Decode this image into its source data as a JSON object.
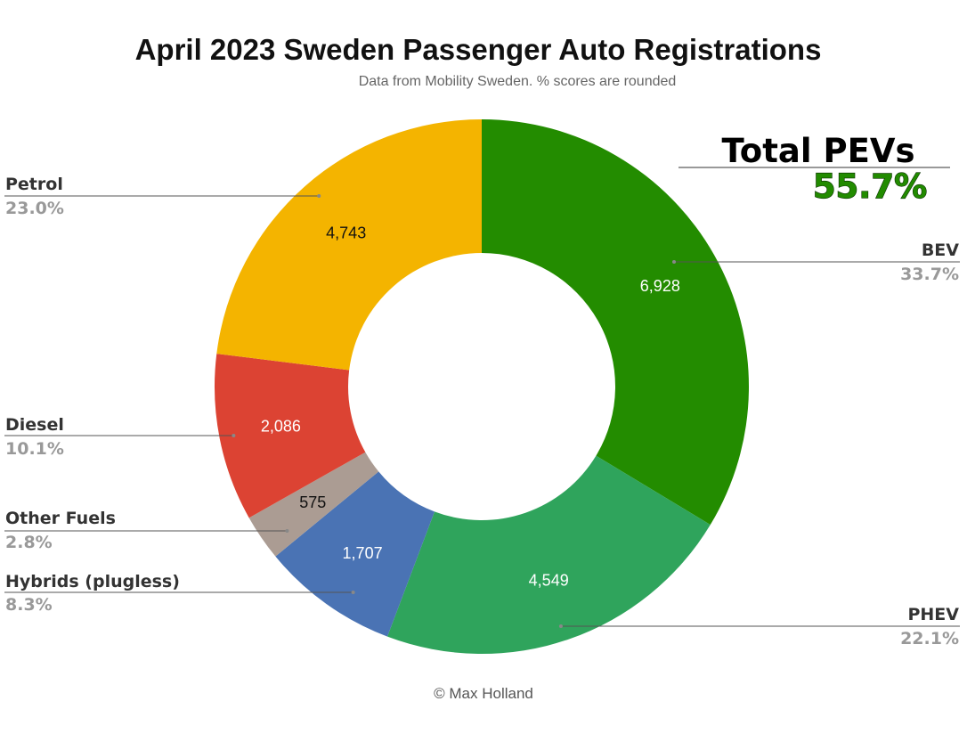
{
  "chart_data": {
    "type": "pie",
    "donut": true,
    "title": "April 2023 Sweden Passenger Auto Registrations",
    "subtitle": "Data from Mobility Sweden. % scores are rounded",
    "credit": "© Max Holland",
    "slices": [
      {
        "name": "BEV",
        "value": 6928,
        "value_label": "6,928",
        "percent_label": "33.7%",
        "color": "#238c00",
        "label_color": "#ffffff"
      },
      {
        "name": "PHEV",
        "value": 4549,
        "value_label": "4,549",
        "percent_label": "22.1%",
        "color": "#2fa45c",
        "label_color": "#ffffff"
      },
      {
        "name": "Hybrids (plugless)",
        "value": 1707,
        "value_label": "1,707",
        "percent_label": "8.3%",
        "color": "#4a73b4",
        "label_color": "#ffffff"
      },
      {
        "name": "Other Fuels",
        "value": 575,
        "value_label": "575",
        "percent_label": "2.8%",
        "color": "#ab9c93",
        "label_color": "#111111"
      },
      {
        "name": "Diesel",
        "value": 2086,
        "value_label": "2,086",
        "percent_label": "10.1%",
        "color": "#dc4333",
        "label_color": "#ffffff"
      },
      {
        "name": "Petrol",
        "value": 4743,
        "value_label": "4,743",
        "percent_label": "23.0%",
        "color": "#f4b400",
        "label_color": "#111111"
      }
    ],
    "annotation": {
      "title": "Total PEVs",
      "value": "55.7%",
      "value_color": "#228b00"
    }
  }
}
